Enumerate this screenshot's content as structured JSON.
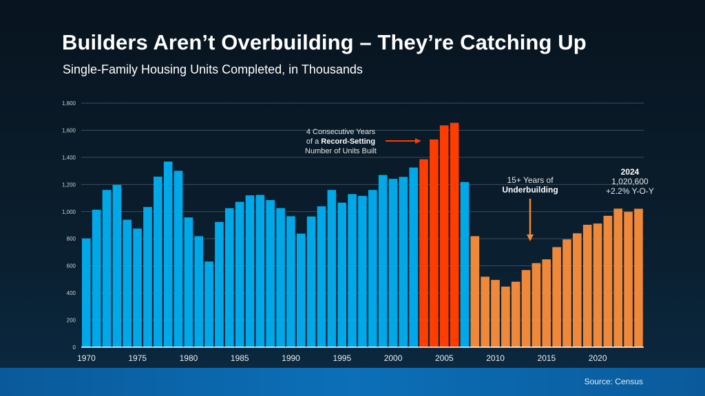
{
  "header": {
    "title": "Builders Aren’t Overbuilding – They’re Catching Up",
    "subtitle": "Single-Family Housing Units Completed, in Thousands"
  },
  "footer": {
    "source": "Source: Census"
  },
  "colors": {
    "base": "#00a8e8",
    "record": "#ff3d00",
    "underbuilding": "#f0883a",
    "grid": "#3a4f60"
  },
  "annotations": {
    "record": {
      "line1": "4 Consecutive Years",
      "line2_pre": "of a ",
      "line2_bold": "Record-Setting",
      "line3": "Number of Units Built"
    },
    "under": {
      "line1": "15+ Years of",
      "line2_bold": "Underbuilding"
    },
    "latest": {
      "year": "2024",
      "value": "1,020,600",
      "change": "+2.2% Y-O-Y"
    }
  },
  "chart_data": {
    "type": "bar",
    "title": "Builders Aren’t Overbuilding – They’re Catching Up",
    "subtitle": "Single-Family Housing Units Completed, in Thousands",
    "ylim": [
      0,
      1800
    ],
    "yticks": [
      "0",
      "200",
      "400",
      "600",
      "800",
      "1,000",
      "1,200",
      "1,400",
      "1,600",
      "1,800"
    ],
    "xticks": [
      "1970",
      "1975",
      "1980",
      "1985",
      "1990",
      "1995",
      "2000",
      "2005",
      "2010",
      "2015",
      "2020"
    ],
    "grid": true,
    "categories": [
      1970,
      1971,
      1972,
      1973,
      1974,
      1975,
      1976,
      1977,
      1978,
      1979,
      1980,
      1981,
      1982,
      1983,
      1984,
      1985,
      1986,
      1987,
      1988,
      1989,
      1990,
      1991,
      1992,
      1993,
      1994,
      1995,
      1996,
      1997,
      1998,
      1999,
      2000,
      2001,
      2002,
      2003,
      2004,
      2005,
      2006,
      2007,
      2008,
      2009,
      2010,
      2011,
      2012,
      2013,
      2014,
      2015,
      2016,
      2017,
      2018,
      2019,
      2020,
      2021,
      2022,
      2023,
      2024
    ],
    "values": [
      802,
      1014,
      1160,
      1197,
      940,
      875,
      1034,
      1258,
      1369,
      1301,
      957,
      819,
      632,
      924,
      1025,
      1072,
      1120,
      1123,
      1085,
      1026,
      966,
      838,
      964,
      1039,
      1160,
      1066,
      1129,
      1116,
      1160,
      1270,
      1242,
      1256,
      1325,
      1386,
      1532,
      1636,
      1655,
      1218,
      819,
      520,
      496,
      447,
      483,
      569,
      620,
      648,
      738,
      795,
      840,
      903,
      912,
      969,
      1022,
      998,
      1021
    ],
    "highlight": {
      "record": [
        2003,
        2004,
        2005,
        2006
      ],
      "underbuilding_from": 2008
    }
  }
}
